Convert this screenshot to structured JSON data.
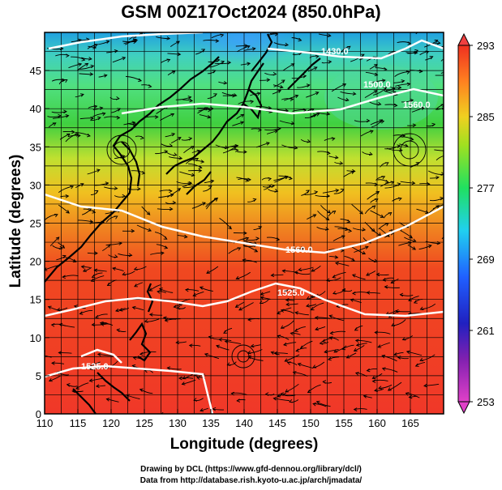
{
  "title": "GSM 00Z17Oct2024 (850.0hPa)",
  "x_axis": {
    "label": "Longitude (degrees)",
    "ticks": [
      "110",
      "115",
      "120",
      "125",
      "130",
      "135",
      "140",
      "145",
      "150",
      "155",
      "160",
      "165"
    ],
    "range": [
      110,
      170
    ]
  },
  "y_axis": {
    "label": "Latitude (degrees)",
    "ticks": [
      "0",
      "5",
      "10",
      "15",
      "20",
      "25",
      "30",
      "35",
      "40",
      "45"
    ],
    "range": [
      0,
      50
    ]
  },
  "colorbar": {
    "ticks": [
      "293",
      "285",
      "277",
      "269",
      "261",
      "253"
    ],
    "range": [
      253,
      293
    ],
    "colors": [
      "#e040c8",
      "#4020a0",
      "#2040ff",
      "#20c8ff",
      "#20e060",
      "#f0e020",
      "#ff9020",
      "#f03020"
    ]
  },
  "contour_labels": [
    "1430.0",
    "1500.0",
    "1560.0",
    "1560.0",
    "1525.0",
    "1525.0"
  ],
  "credits": {
    "line1": "Drawing by DCL (https://www.gfd-dennou.org/library/dcl/)",
    "line2": "Data from http://database.rish.kyoto-u.ac.jp/arch/jmadata/"
  }
}
